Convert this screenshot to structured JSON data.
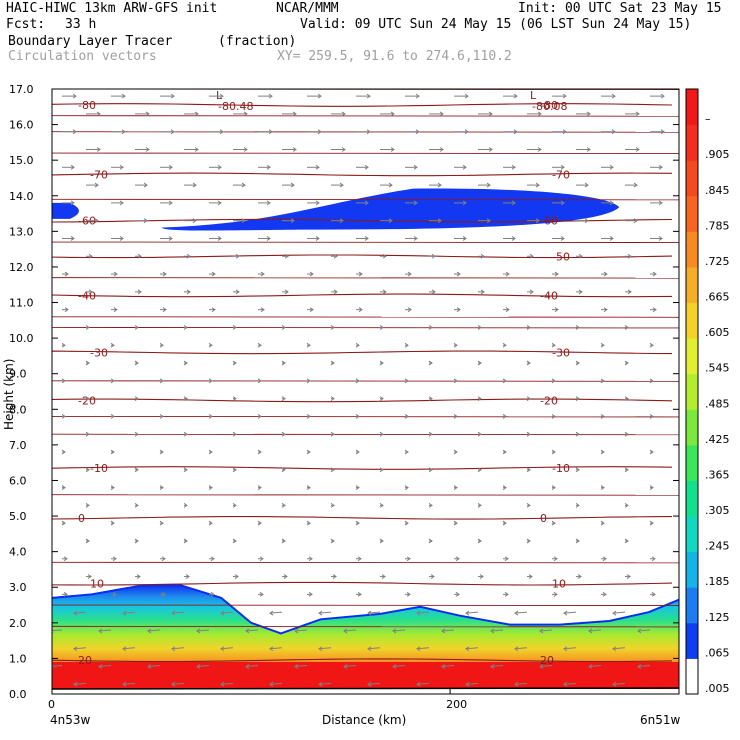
{
  "header": {
    "model_title": "HAIC-HIWC 13km ARW-GFS init",
    "org": "NCAR/MMM",
    "init": "Init: 00 UTC Sat 23 May 15",
    "fcst_label": "Fcst:",
    "fcst_value": "33 h",
    "valid": "Valid: 09 UTC Sun 24 May 15 (06 LST Sun 24 May 15)",
    "field_name": "Boundary Layer Tracer",
    "field_units": "(fraction)",
    "vector_label": "Circulation vectors",
    "xy_label": "XY= 259.5, 91.6 to 274.6,110.2"
  },
  "chart_data": {
    "type": "heatmap",
    "xlabel": "Distance (km)",
    "ylabel": "Height (km)",
    "x_ticks": [
      {
        "value": 0,
        "label": "0"
      },
      {
        "value": 200,
        "label": "200"
      }
    ],
    "x_edge_labels": {
      "left": "4n53w",
      "right": "6n51w"
    },
    "xlim": [
      0,
      315
    ],
    "ylim": [
      0,
      17
    ],
    "y_ticks": [
      "0.0",
      "1.0",
      "2.0",
      "3.0",
      "4.0",
      "5.0",
      "6.0",
      "7.0",
      "8.0",
      "9.0",
      "10.0",
      "11.0",
      "12.0",
      "13.0",
      "14.0",
      "15.0",
      "16.0",
      "17.0"
    ],
    "colorbar": {
      "labels": [
        ".005",
        ".065",
        ".125",
        ".185",
        ".245",
        ".305",
        ".365",
        ".425",
        ".485",
        ".545",
        ".605",
        ".665",
        ".725",
        ".785",
        ".845",
        ".905",
        "–"
      ],
      "colors": [
        "#ffffff",
        "#0e3ef2",
        "#1c7cf0",
        "#16b4e6",
        "#12d7c2",
        "#12e08c",
        "#3ce65a",
        "#7ae83c",
        "#b4ec30",
        "#e2ee30",
        "#f4d22a",
        "#f6ae26",
        "#f88a22",
        "#f66620",
        "#f44a20",
        "#f22e1e",
        "#f01818"
      ]
    },
    "temperature_contours_c": [
      20,
      10,
      0,
      -10,
      -20,
      -30,
      -40,
      -50,
      -60,
      -70,
      -80
    ],
    "temperature_contour_heights_km": [
      0.95,
      3.1,
      4.95,
      6.35,
      8.25,
      9.6,
      11.2,
      12.3,
      13.3,
      14.6,
      16.55
    ],
    "min_labels": [
      "L",
      "L"
    ],
    "min_values": [
      "-80.48",
      "-80.08"
    ],
    "boundary_layer_top_km": [
      {
        "x": 0,
        "y": 2.7
      },
      {
        "x": 20,
        "y": 2.8
      },
      {
        "x": 45,
        "y": 3.05
      },
      {
        "x": 65,
        "y": 3.05
      },
      {
        "x": 85,
        "y": 2.7
      },
      {
        "x": 100,
        "y": 2.0
      },
      {
        "x": 115,
        "y": 1.7
      },
      {
        "x": 135,
        "y": 2.1
      },
      {
        "x": 165,
        "y": 2.25
      },
      {
        "x": 185,
        "y": 2.45
      },
      {
        "x": 205,
        "y": 2.2
      },
      {
        "x": 230,
        "y": 1.95
      },
      {
        "x": 255,
        "y": 1.95
      },
      {
        "x": 280,
        "y": 2.05
      },
      {
        "x": 300,
        "y": 2.3
      },
      {
        "x": 315,
        "y": 2.65
      }
    ],
    "upper_layer_patches_km": [
      {
        "x_from": 0,
        "x_to": 15,
        "y_bottom": 13.35,
        "y_top": 13.8
      },
      {
        "x_from": 55,
        "x_to": 285,
        "y_bottom": 13.05,
        "y_top": 14.2
      }
    ]
  }
}
